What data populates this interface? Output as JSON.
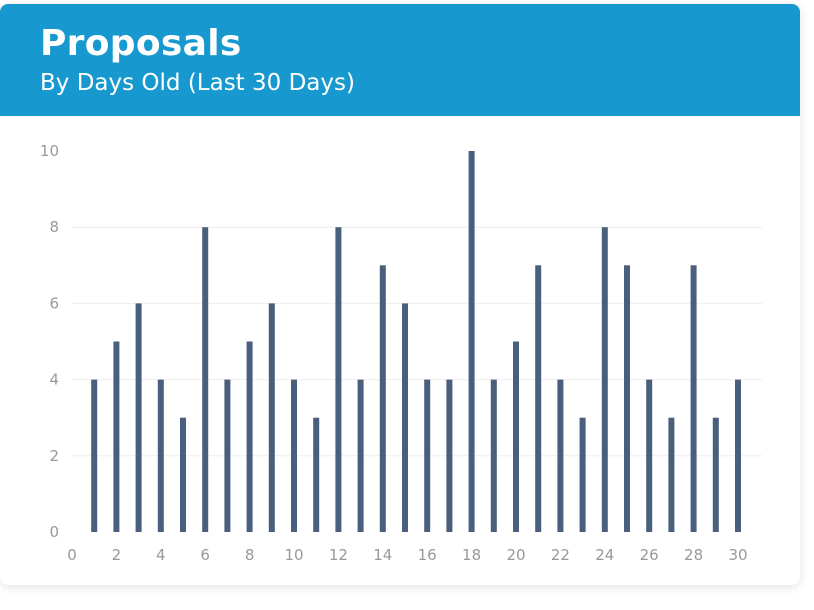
{
  "header": {
    "title": "Proposals",
    "subtitle": "By Days Old (Last 30 Days)"
  },
  "colors": {
    "header_bg": "#1799cf",
    "bar": "#4a5f7b",
    "grid": "#eeeeee",
    "tick_text": "#999999"
  },
  "chart_data": {
    "type": "bar",
    "title": "Proposals",
    "subtitle": "By Days Old (Last 30 Days)",
    "xlabel": "",
    "ylabel": "",
    "x": [
      1,
      2,
      3,
      4,
      5,
      6,
      7,
      8,
      9,
      10,
      11,
      12,
      13,
      14,
      15,
      16,
      17,
      18,
      19,
      20,
      21,
      22,
      23,
      24,
      25,
      26,
      27,
      28,
      29,
      30
    ],
    "values": [
      4,
      5,
      6,
      4,
      3,
      8,
      4,
      5,
      6,
      4,
      3,
      8,
      4,
      7,
      6,
      4,
      4,
      10,
      4,
      5,
      7,
      4,
      3,
      8,
      7,
      4,
      3,
      7,
      3,
      4
    ],
    "xlim": [
      0,
      30
    ],
    "ylim": [
      0,
      10
    ],
    "x_ticks": [
      0,
      2,
      4,
      6,
      8,
      10,
      12,
      14,
      16,
      18,
      20,
      22,
      24,
      26,
      28,
      30
    ],
    "y_ticks": [
      0,
      2,
      4,
      6,
      8,
      10
    ],
    "grid": true
  }
}
